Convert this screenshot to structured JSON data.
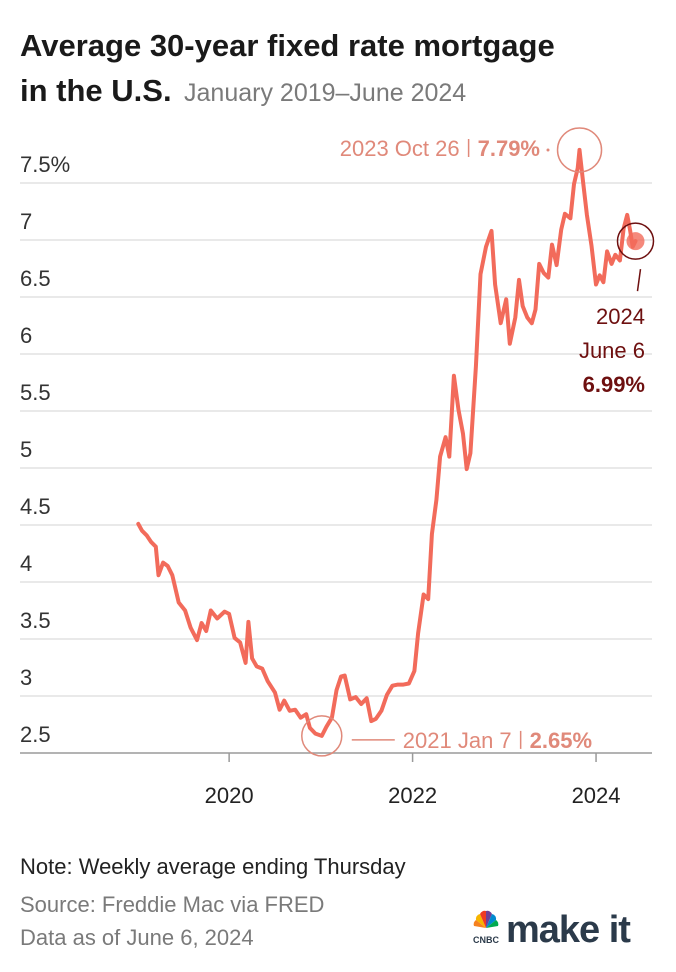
{
  "chart_data": {
    "type": "line",
    "title": [
      "Average 30-year fixed rate mortgage",
      "in the U.S."
    ],
    "subtitle": "January 2019–June 2024",
    "color": "#f26b5b",
    "x": [
      2019.01,
      2019.05,
      2019.1,
      2019.15,
      2019.2,
      2019.23,
      2019.28,
      2019.33,
      2019.38,
      2019.45,
      2019.52,
      2019.58,
      2019.65,
      2019.7,
      2019.75,
      2019.8,
      2019.87,
      2019.95,
      2020.0,
      2020.06,
      2020.12,
      2020.18,
      2020.21,
      2020.25,
      2020.3,
      2020.36,
      2020.42,
      2020.5,
      2020.55,
      2020.6,
      2020.66,
      2020.72,
      2020.78,
      2020.84,
      2020.88,
      2020.94,
      2021.01,
      2021.06,
      2021.12,
      2021.17,
      2021.22,
      2021.26,
      2021.32,
      2021.38,
      2021.44,
      2021.5,
      2021.55,
      2021.6,
      2021.66,
      2021.72,
      2021.78,
      2021.84,
      2021.9,
      2021.96,
      2022.02,
      2022.06,
      2022.12,
      2022.17,
      2022.21,
      2022.26,
      2022.3,
      2022.36,
      2022.4,
      2022.45,
      2022.5,
      2022.55,
      2022.59,
      2022.63,
      2022.69,
      2022.74,
      2022.8,
      2022.86,
      2022.9,
      2022.96,
      2023.02,
      2023.06,
      2023.12,
      2023.16,
      2023.2,
      2023.25,
      2023.3,
      2023.34,
      2023.38,
      2023.43,
      2023.48,
      2023.52,
      2023.57,
      2023.62,
      2023.66,
      2023.72,
      2023.76,
      2023.8,
      2023.82,
      2023.86,
      2023.9,
      2023.95,
      2024.0,
      2024.04,
      2024.08,
      2024.12,
      2024.17,
      2024.21,
      2024.26,
      2024.3,
      2024.34,
      2024.37,
      2024.4,
      2024.43
    ],
    "values": [
      4.51,
      4.45,
      4.41,
      4.35,
      4.31,
      4.06,
      4.17,
      4.14,
      4.06,
      3.82,
      3.75,
      3.6,
      3.49,
      3.64,
      3.57,
      3.75,
      3.68,
      3.74,
      3.72,
      3.51,
      3.47,
      3.29,
      3.65,
      3.33,
      3.26,
      3.24,
      3.13,
      3.03,
      2.88,
      2.96,
      2.87,
      2.88,
      2.81,
      2.84,
      2.72,
      2.67,
      2.65,
      2.73,
      2.81,
      3.05,
      3.17,
      3.18,
      2.97,
      2.99,
      2.93,
      2.98,
      2.78,
      2.8,
      2.87,
      3.01,
      3.09,
      3.1,
      3.1,
      3.11,
      3.22,
      3.55,
      3.89,
      3.85,
      4.42,
      4.72,
      5.1,
      5.27,
      5.1,
      5.81,
      5.51,
      5.3,
      4.99,
      5.13,
      5.89,
      6.7,
      6.94,
      7.08,
      6.61,
      6.27,
      6.48,
      6.09,
      6.32,
      6.65,
      6.42,
      6.32,
      6.27,
      6.39,
      6.79,
      6.71,
      6.67,
      6.96,
      6.78,
      7.09,
      7.23,
      7.19,
      7.49,
      7.63,
      7.79,
      7.5,
      7.22,
      6.95,
      6.61,
      6.69,
      6.63,
      6.9,
      6.79,
      6.87,
      6.82,
      7.1,
      7.22,
      7.09,
      6.94,
      6.99
    ],
    "xlim": [
      2017.72,
      2024.61
    ],
    "ylim": [
      2.5,
      7.5
    ],
    "xticks": [
      2020,
      2022,
      2024
    ],
    "yticks": [
      {
        "value": 7.5,
        "label": "7.5%"
      },
      7,
      6.5,
      6,
      5.5,
      5,
      4.5,
      4,
      3.5,
      3,
      2.5
    ],
    "grid": true,
    "annotations": [
      {
        "date": "2023 Oct 26",
        "x": 2023.82,
        "value": 7.79,
        "value_label": "7.79%"
      },
      {
        "date": "2021 Jan 7",
        "x": 2021.01,
        "value": 2.65,
        "value_label": "2.65%"
      },
      {
        "date": [
          "2024",
          "June 6"
        ],
        "x": 2024.43,
        "value": 6.99,
        "value_label": "6.99%"
      }
    ]
  },
  "footer": {
    "note": "Note: Weekly average ending Thursday",
    "source": "Source: Freddie Mac via FRED",
    "data_date": "Data as of June 6, 2024",
    "logo_brand": "CNBC",
    "logo_text": "make it"
  }
}
